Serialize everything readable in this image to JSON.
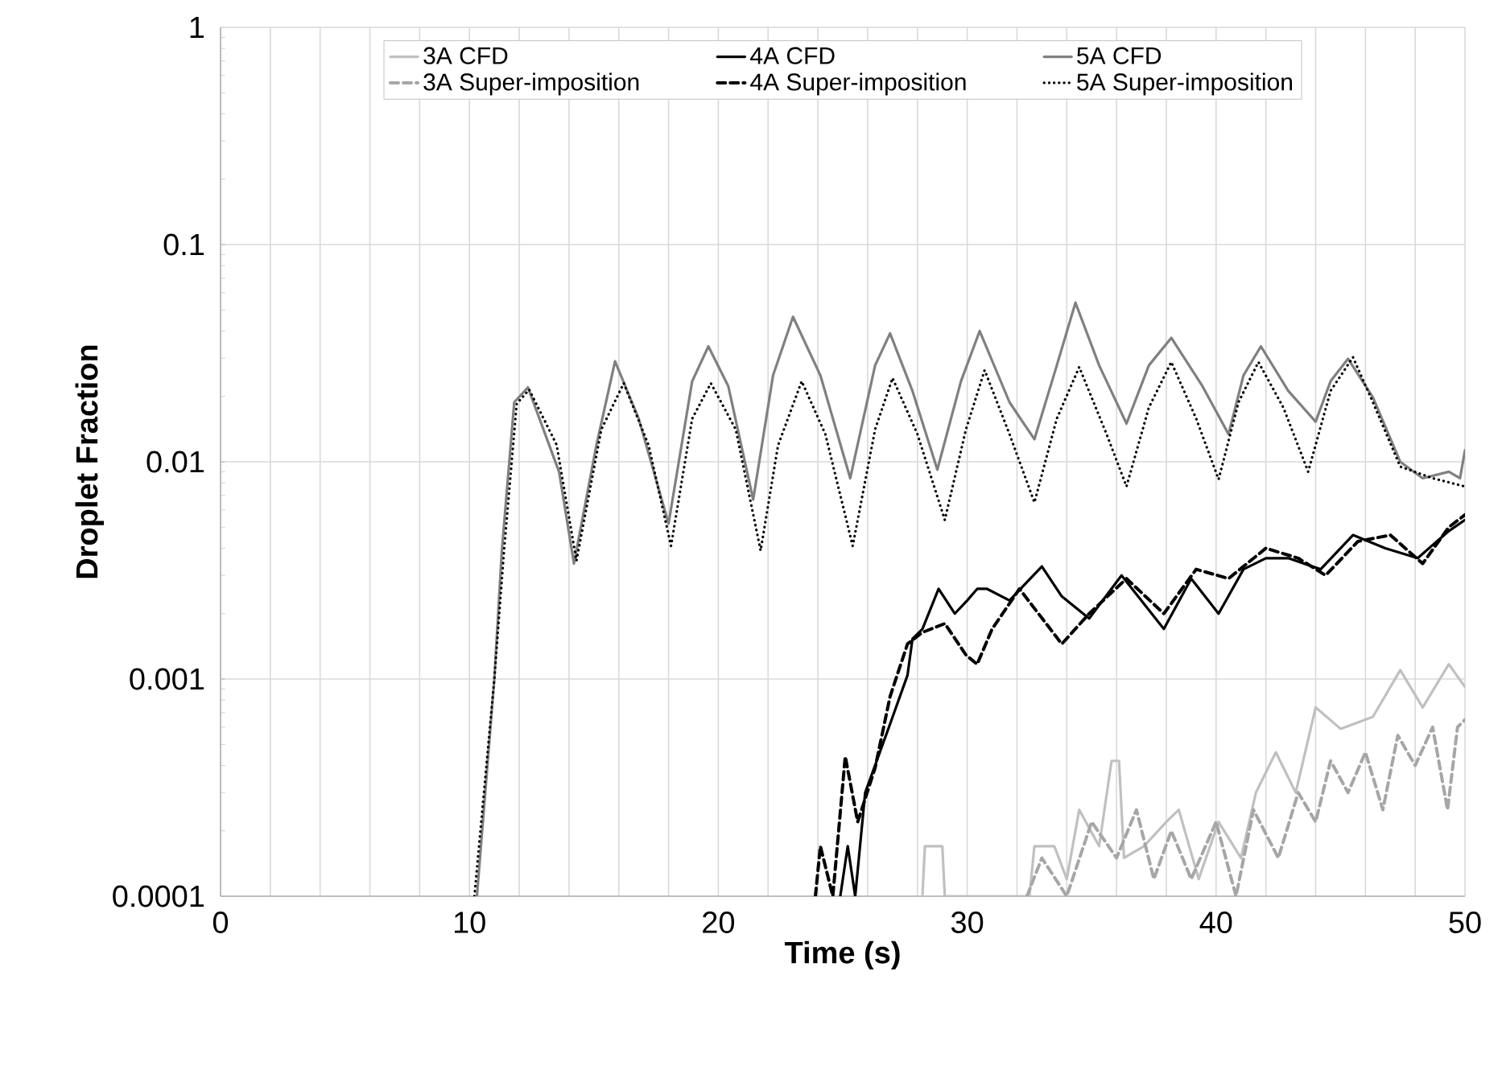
{
  "chart_data": {
    "type": "line",
    "xlabel": "Time (s)",
    "ylabel": "Droplet Fraction",
    "log": "y",
    "grid": true,
    "legend": "top",
    "marker": "none",
    "xlim": [
      0,
      50
    ],
    "ylim": [
      0.0001,
      1
    ],
    "xticks": [
      0,
      {
        "value": 2,
        "label": null
      },
      {
        "value": 4,
        "label": null
      },
      {
        "value": 6,
        "label": null
      },
      {
        "value": 8,
        "label": null
      },
      10,
      {
        "value": 12,
        "label": null
      },
      {
        "value": 14,
        "label": null
      },
      {
        "value": 16,
        "label": null
      },
      {
        "value": 18,
        "label": null
      },
      20,
      {
        "value": 22,
        "label": null
      },
      {
        "value": 24,
        "label": null
      },
      {
        "value": 26,
        "label": null
      },
      {
        "value": 28,
        "label": null
      },
      30,
      {
        "value": 32,
        "label": null
      },
      {
        "value": 34,
        "label": null
      },
      {
        "value": 36,
        "label": null
      },
      {
        "value": 38,
        "label": null
      },
      40,
      {
        "value": 42,
        "label": null
      },
      {
        "value": 44,
        "label": null
      },
      {
        "value": 46,
        "label": null
      },
      {
        "value": 48,
        "label": null
      },
      50
    ],
    "yticks": [
      0.0001,
      0.001,
      0.01,
      0.1,
      1
    ],
    "series": [
      {
        "name": "3A CFD",
        "color": "#c0c0c0",
        "line_style": "solid",
        "x": [
          28.2,
          28.3,
          29.0,
          29.1,
          32.5,
          32.7,
          33.5,
          34.0,
          34.5,
          35.3,
          35.8,
          36.1,
          36.3,
          37.1,
          38.0,
          38.5,
          39.3,
          40.1,
          41.0,
          41.6,
          42.4,
          43.2,
          44.0,
          45.0,
          46.3,
          47.4,
          48.3,
          49.35,
          50
        ],
        "values": [
          0.0001,
          0.00017,
          0.00017,
          0.0001,
          0.0001,
          0.00017,
          0.00017,
          0.00012,
          0.00025,
          0.00017,
          0.00042,
          0.00042,
          0.00015,
          0.00017,
          0.00022,
          0.00025,
          0.00012,
          0.00022,
          0.00015,
          0.0003,
          0.00046,
          0.0003,
          0.00074,
          0.00059,
          0.00067,
          0.0011,
          0.00074,
          0.00117,
          0.00092
        ]
      },
      {
        "name": "4A CFD",
        "color": "#000000",
        "line_style": "solid",
        "x": [
          24.9,
          25.2,
          25.5,
          25.9,
          26.9,
          27.6,
          27.8,
          28.2,
          28.85,
          29.5,
          30.0,
          30.4,
          30.8,
          31.7,
          33.0,
          33.8,
          34.9,
          36.2,
          37.9,
          39.0,
          40.1,
          41.1,
          42.0,
          42.9,
          44.2,
          45.5,
          46.8,
          48.1,
          49.35,
          50
        ],
        "values": [
          0.0001,
          0.00017,
          0.0001,
          0.0003,
          0.00062,
          0.00104,
          0.00153,
          0.0017,
          0.0026,
          0.002,
          0.0023,
          0.0026,
          0.0026,
          0.0023,
          0.0033,
          0.0024,
          0.0019,
          0.003,
          0.0017,
          0.0029,
          0.002,
          0.0032,
          0.0036,
          0.0036,
          0.0032,
          0.0046,
          0.004,
          0.0036,
          0.0048,
          0.0054
        ]
      },
      {
        "name": "5A CFD",
        "color": "#808080",
        "line_style": "solid",
        "x": [
          10.3,
          11.0,
          11.3,
          11.8,
          12.35,
          13.6,
          14.2,
          15.1,
          15.85,
          16.8,
          18.0,
          18.95,
          19.6,
          20.4,
          21.4,
          22.2,
          23.0,
          24.1,
          25.3,
          26.3,
          26.9,
          27.8,
          28.8,
          29.75,
          30.5,
          31.7,
          32.7,
          33.6,
          34.35,
          35.3,
          36.4,
          37.3,
          38.2,
          39.45,
          40.5,
          41.1,
          41.8,
          42.9,
          44.0,
          44.6,
          45.3,
          46.3,
          47.4,
          48.3,
          49.35,
          49.8,
          50
        ],
        "values": [
          0.0001,
          0.001,
          0.00385,
          0.0188,
          0.022,
          0.009,
          0.0034,
          0.0119,
          0.029,
          0.0158,
          0.0052,
          0.0235,
          0.034,
          0.0223,
          0.0067,
          0.025,
          0.0465,
          0.025,
          0.0084,
          0.0278,
          0.039,
          0.0212,
          0.0092,
          0.0235,
          0.04,
          0.0188,
          0.0127,
          0.0278,
          0.054,
          0.0278,
          0.015,
          0.0278,
          0.0372,
          0.0223,
          0.0134,
          0.025,
          0.034,
          0.0212,
          0.0153,
          0.0235,
          0.0298,
          0.0198,
          0.01,
          0.0084,
          0.009,
          0.0084,
          0.0113
        ]
      },
      {
        "name": "3A Super-imposition",
        "color": "#a6a6a6",
        "line_style": "dashed",
        "x": [
          32.4,
          33.0,
          34.0,
          35.0,
          36.0,
          36.8,
          37.5,
          38.2,
          39.0,
          40.0,
          40.8,
          41.5,
          42.5,
          43.3,
          44.0,
          44.6,
          45.3,
          46.0,
          46.7,
          47.3,
          48.0,
          48.7,
          49.3,
          49.7,
          50
        ],
        "values": [
          0.0001,
          0.00015,
          0.0001,
          0.00022,
          0.00015,
          0.00025,
          0.00012,
          0.0002,
          0.00012,
          0.00022,
          0.0001,
          0.00025,
          0.00015,
          0.0003,
          0.00022,
          0.00042,
          0.0003,
          0.00046,
          0.00025,
          0.00055,
          0.0004,
          0.0006,
          0.00025,
          0.0006,
          0.00065
        ]
      },
      {
        "name": "4A Super-imposition",
        "color": "#000000",
        "line_style": "dashed",
        "x": [
          23.9,
          24.1,
          24.6,
          25.1,
          25.6,
          26.3,
          26.9,
          27.6,
          28.2,
          29.1,
          29.95,
          30.4,
          31.0,
          32.1,
          33.8,
          34.9,
          36.4,
          37.9,
          39.2,
          40.5,
          42.0,
          43.3,
          44.4,
          45.7,
          47.0,
          48.3,
          49.35,
          50
        ],
        "values": [
          0.0001,
          0.00017,
          0.0001,
          0.00044,
          0.00022,
          0.00039,
          0.00083,
          0.00145,
          0.00164,
          0.0018,
          0.00129,
          0.00117,
          0.0017,
          0.0026,
          0.00145,
          0.002,
          0.0029,
          0.002,
          0.0032,
          0.0029,
          0.004,
          0.0036,
          0.003,
          0.0043,
          0.0046,
          0.0034,
          0.005,
          0.0057
        ]
      },
      {
        "name": "5A Super-imposition",
        "color": "#000000",
        "line_style": "dotted",
        "x": [
          10.2,
          11.0,
          11.4,
          11.9,
          12.4,
          13.5,
          14.3,
          15.3,
          16.2,
          17.2,
          18.1,
          18.95,
          19.7,
          20.7,
          21.7,
          22.4,
          23.35,
          24.3,
          25.4,
          26.3,
          27.0,
          28.0,
          29.1,
          29.95,
          30.7,
          31.7,
          32.7,
          33.6,
          34.5,
          35.6,
          36.4,
          37.3,
          38.2,
          39.2,
          40.1,
          40.9,
          41.7,
          42.7,
          43.7,
          44.6,
          45.5,
          46.3,
          47.4,
          48.7,
          50
        ],
        "values": [
          0.0001,
          0.001,
          0.004,
          0.0185,
          0.0215,
          0.012,
          0.0035,
          0.0141,
          0.023,
          0.0119,
          0.0041,
          0.0158,
          0.023,
          0.0141,
          0.0039,
          0.0119,
          0.0235,
          0.0134,
          0.0041,
          0.0141,
          0.0243,
          0.0134,
          0.0054,
          0.0141,
          0.0264,
          0.0134,
          0.0065,
          0.0158,
          0.0273,
          0.0134,
          0.0077,
          0.0178,
          0.0288,
          0.0158,
          0.0083,
          0.0188,
          0.0288,
          0.0178,
          0.009,
          0.0212,
          0.0303,
          0.0188,
          0.0095,
          0.0084,
          0.0077
        ]
      }
    ]
  }
}
